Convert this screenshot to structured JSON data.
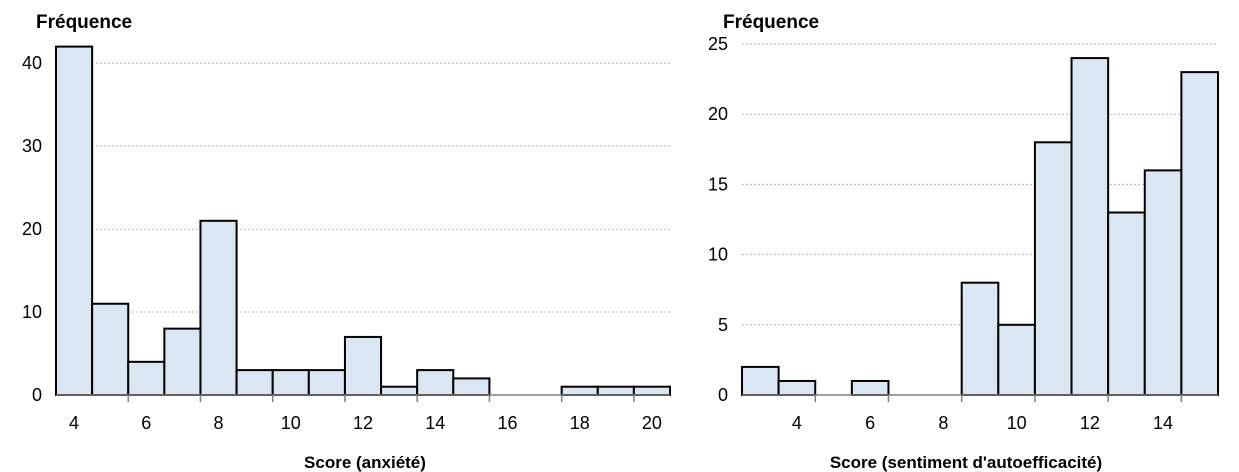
{
  "chart_data": [
    {
      "type": "bar",
      "title": "",
      "ylabel": "Fréquence",
      "xlabel": "Score (anxiété)",
      "x": [
        4,
        5,
        6,
        7,
        8,
        9,
        10,
        11,
        12,
        13,
        14,
        15,
        16,
        17,
        18,
        19,
        20
      ],
      "values": [
        42,
        11,
        4,
        8,
        21,
        3,
        3,
        3,
        7,
        1,
        3,
        2,
        0,
        0,
        1,
        1,
        1
      ],
      "xticks": [
        4,
        6,
        8,
        10,
        12,
        14,
        16,
        18,
        20
      ],
      "yticks": [
        0,
        10,
        20,
        30,
        40
      ],
      "ylim": [
        0,
        44
      ],
      "grid": true,
      "bar_color": "#dae6f2",
      "edge_color": "#000000"
    },
    {
      "type": "bar",
      "title": "",
      "ylabel": "Fréquence",
      "xlabel": "Score (sentiment d'autoefficacité)",
      "x": [
        3,
        4,
        5,
        6,
        7,
        8,
        9,
        10,
        11,
        12,
        13,
        14,
        15
      ],
      "values": [
        2,
        1,
        0,
        1,
        0,
        0,
        8,
        5,
        18,
        24,
        13,
        16,
        23
      ],
      "xticks": [
        4,
        6,
        8,
        10,
        12,
        14
      ],
      "yticks": [
        0,
        5,
        10,
        15,
        20,
        25
      ],
      "ylim": [
        0,
        26
      ],
      "grid": true,
      "bar_color": "#dae6f2",
      "edge_color": "#000000"
    }
  ]
}
